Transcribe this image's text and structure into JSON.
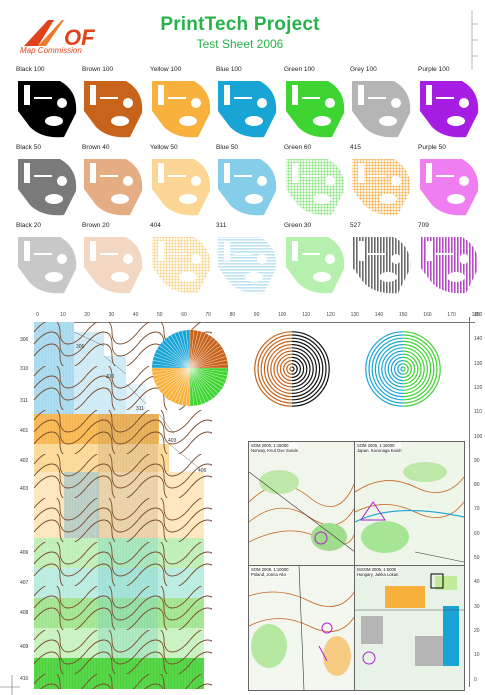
{
  "header": {
    "logo_text": "OF",
    "logo_subtitle": "Map Commission",
    "title": "PrintTech Project",
    "subtitle": "Test Sheet 2006"
  },
  "swatch_rows": [
    [
      {
        "label": "Black 100",
        "color": "#000000",
        "pattern": "solid"
      },
      {
        "label": "Brown 100",
        "color": "#c8631c",
        "pattern": "solid"
      },
      {
        "label": "Yellow 100",
        "color": "#f8b13c",
        "pattern": "solid"
      },
      {
        "label": "Blue 100",
        "color": "#19a4d6",
        "pattern": "solid"
      },
      {
        "label": "Green 100",
        "color": "#3ed431",
        "pattern": "solid"
      },
      {
        "label": "Grey 100",
        "color": "#b5b5b5",
        "pattern": "solid"
      },
      {
        "label": "Purple 100",
        "color": "#a61ee3",
        "pattern": "solid"
      }
    ],
    [
      {
        "label": "Black 50",
        "color": "#7a7a7a",
        "pattern": "solid"
      },
      {
        "label": "Brown 40",
        "color": "#e4ad84",
        "pattern": "solid"
      },
      {
        "label": "Yellow 50",
        "color": "#fbd694",
        "pattern": "solid"
      },
      {
        "label": "Blue 50",
        "color": "#86cde9",
        "pattern": "solid"
      },
      {
        "label": "Green 60",
        "color": "#7ee372",
        "pattern": "dots"
      },
      {
        "label": "415",
        "color": "#f5ac3c",
        "pattern": "dots"
      },
      {
        "label": "Purple 50",
        "color": "#ef7ef0",
        "pattern": "solid"
      }
    ],
    [
      {
        "label": "Black 20",
        "color": "#c8c8c8",
        "pattern": "solid"
      },
      {
        "label": "Brown 20",
        "color": "#f2d7c2",
        "pattern": "solid"
      },
      {
        "label": "404",
        "color": "#f9cf7f",
        "pattern": "dots"
      },
      {
        "label": "311",
        "color": "#bfe3f2",
        "pattern": "hlines"
      },
      {
        "label": "Green 30",
        "color": "#b6f0ae",
        "pattern": "solid"
      },
      {
        "label": "527",
        "color": "#6b6b6b",
        "pattern": "vlines"
      },
      {
        "label": "709",
        "color": "#b84ac8",
        "pattern": "vlines"
      }
    ]
  ],
  "ruler": {
    "h_ticks": [
      "0",
      "10",
      "20",
      "30",
      "40",
      "50",
      "60",
      "70",
      "80",
      "90",
      "100",
      "110",
      "120",
      "130",
      "140",
      "150",
      "160",
      "170",
      "180"
    ],
    "v_ticks": [
      "150",
      "140",
      "130",
      "120",
      "110",
      "100",
      "90",
      "80",
      "70",
      "60",
      "50",
      "40",
      "30",
      "20",
      "10",
      "0"
    ]
  },
  "staircase_rows": [
    "306",
    "310",
    "311",
    "401",
    "402",
    "403",
    "406",
    "407",
    "408",
    "409",
    "410"
  ],
  "staircase_labels": [
    "306",
    "310",
    "311",
    "403",
    "406"
  ],
  "maps": [
    {
      "caption": "SOM 2000, 1:15000\nNorway, Knut Ove Sunde"
    },
    {
      "caption": "SOM 2005, 1:15000\nJapan, Kacunaga Kaioh"
    },
    {
      "caption": "SOM 2006, 1:10000\nPoland, Jonna Alto"
    },
    {
      "caption": "ISSOM 2005, 1:5000\nHungary, Jukka Lokan"
    }
  ],
  "colors": {
    "title_green": "#27b34a",
    "logo_orange": "#e0431b"
  }
}
